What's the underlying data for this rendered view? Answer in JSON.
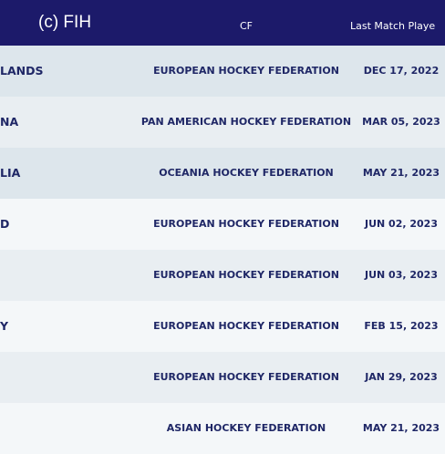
{
  "watermark": "(c) FIH",
  "header": {
    "cf": "CF",
    "date": "Last Match Playe"
  },
  "rows": [
    {
      "team": "LANDS",
      "cf": "EUROPEAN HOCKEY FEDERATION",
      "date": "DEC 17, 2022"
    },
    {
      "team": "NA",
      "cf": "PAN AMERICAN HOCKEY FEDERATION",
      "date": "MAR 05, 2023"
    },
    {
      "team": "LIA",
      "cf": "OCEANIA HOCKEY FEDERATION",
      "date": "MAY 21, 2023"
    },
    {
      "team": "D",
      "cf": "EUROPEAN HOCKEY FEDERATION",
      "date": "JUN 02, 2023"
    },
    {
      "cf": "EUROPEAN HOCKEY FEDERATION",
      "date": "JUN 03, 2023"
    },
    {
      "team": "Y",
      "cf": "EUROPEAN HOCKEY FEDERATION",
      "date": "FEB 15, 2023"
    },
    {
      "cf": "EUROPEAN HOCKEY FEDERATION",
      "date": "JAN 29, 2023"
    },
    {
      "cf": "ASIAN HOCKEY FEDERATION",
      "date": "MAY 21, 2023"
    }
  ]
}
